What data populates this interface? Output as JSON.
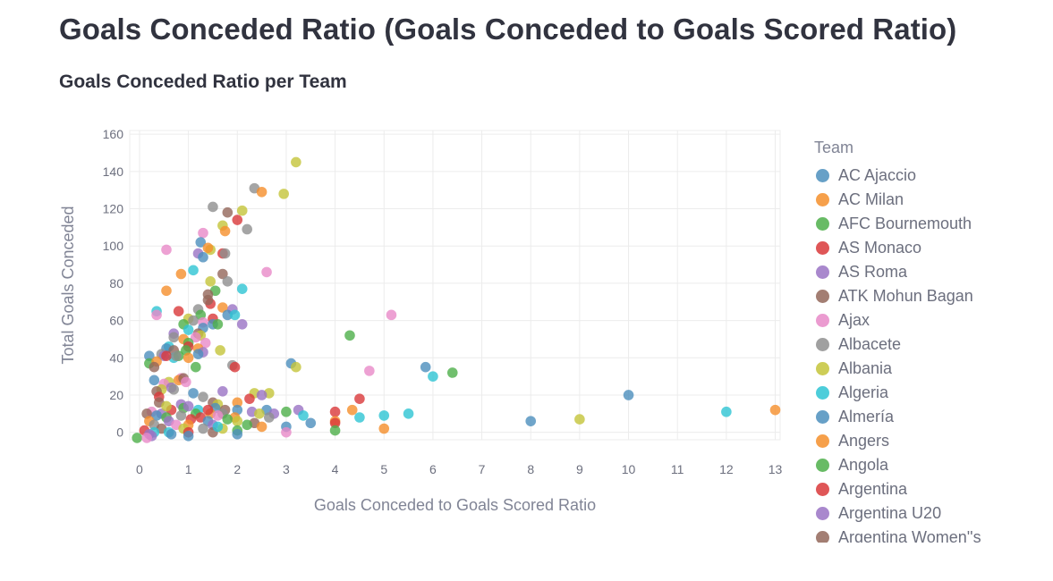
{
  "page": {
    "title": "Goals Conceded Ratio (Goals Conceded to Goals Scored Ratio)",
    "chart_heading": "Goals Conceded Ratio per Team"
  },
  "legend": {
    "title": "Team",
    "items": [
      {
        "label": "AC Ajaccio",
        "color": "#4c8fbd"
      },
      {
        "label": "AC Milan",
        "color": "#f58f2c"
      },
      {
        "label": "AFC Bournemouth",
        "color": "#4daf4a"
      },
      {
        "label": "AS Monaco",
        "color": "#d9383a"
      },
      {
        "label": "AS Roma",
        "color": "#9a73c4"
      },
      {
        "label": "ATK Mohun Bagan",
        "color": "#93675a"
      },
      {
        "label": "Ajax",
        "color": "#e889c8"
      },
      {
        "label": "Albacete",
        "color": "#8f8f8f"
      },
      {
        "label": "Albania",
        "color": "#c4c43a"
      },
      {
        "label": "Algeria",
        "color": "#2ec4d3"
      },
      {
        "label": "Almería",
        "color": "#4c8fbd"
      },
      {
        "label": "Angers",
        "color": "#f58f2c"
      },
      {
        "label": "Angola",
        "color": "#4daf4a"
      },
      {
        "label": "Argentina",
        "color": "#d9383a"
      },
      {
        "label": "Argentina U20",
        "color": "#9a73c4"
      },
      {
        "label": "Argentina Women''s",
        "color": "#93675a"
      }
    ]
  },
  "chart_data": {
    "type": "scatter",
    "xlabel": "Goals Conceded to Goals Scored Ratio",
    "ylabel": "Total Goals Conceded",
    "xlim": [
      -0.2,
      13.1
    ],
    "ylim": [
      -4,
      162
    ],
    "x_ticks": [
      0,
      1,
      2,
      3,
      4,
      5,
      6,
      7,
      8,
      9,
      10,
      11,
      12,
      13
    ],
    "y_ticks": [
      0,
      20,
      40,
      60,
      80,
      100,
      120,
      140,
      160
    ],
    "grid": true,
    "legend_position": "right",
    "palette": [
      "#4c8fbd",
      "#f58f2c",
      "#4daf4a",
      "#d9383a",
      "#9a73c4",
      "#93675a",
      "#e889c8",
      "#8f8f8f",
      "#c4c43a",
      "#2ec4d3"
    ],
    "points": [
      {
        "x": 3.2,
        "y": 145,
        "c": 8
      },
      {
        "x": 2.35,
        "y": 131,
        "c": 7
      },
      {
        "x": 2.5,
        "y": 129,
        "c": 1
      },
      {
        "x": 2.95,
        "y": 128,
        "c": 8
      },
      {
        "x": 1.5,
        "y": 121,
        "c": 7
      },
      {
        "x": 2.1,
        "y": 119,
        "c": 8
      },
      {
        "x": 1.8,
        "y": 118,
        "c": 5
      },
      {
        "x": 2.0,
        "y": 114,
        "c": 3
      },
      {
        "x": 1.7,
        "y": 111,
        "c": 8
      },
      {
        "x": 1.75,
        "y": 108,
        "c": 1
      },
      {
        "x": 2.2,
        "y": 109,
        "c": 7
      },
      {
        "x": 1.3,
        "y": 107,
        "c": 6
      },
      {
        "x": 1.25,
        "y": 102,
        "c": 0
      },
      {
        "x": 1.45,
        "y": 98,
        "c": 8
      },
      {
        "x": 0.55,
        "y": 98,
        "c": 6
      },
      {
        "x": 1.4,
        "y": 99,
        "c": 1
      },
      {
        "x": 1.2,
        "y": 96,
        "c": 4
      },
      {
        "x": 1.7,
        "y": 96,
        "c": 3
      },
      {
        "x": 1.3,
        "y": 94,
        "c": 0
      },
      {
        "x": 1.75,
        "y": 96,
        "c": 7
      },
      {
        "x": 1.1,
        "y": 87,
        "c": 9
      },
      {
        "x": 0.85,
        "y": 85,
        "c": 1
      },
      {
        "x": 1.7,
        "y": 85,
        "c": 5
      },
      {
        "x": 2.6,
        "y": 86,
        "c": 6
      },
      {
        "x": 1.45,
        "y": 81,
        "c": 8
      },
      {
        "x": 1.8,
        "y": 81,
        "c": 7
      },
      {
        "x": 0.55,
        "y": 76,
        "c": 1
      },
      {
        "x": 1.55,
        "y": 76,
        "c": 2
      },
      {
        "x": 2.1,
        "y": 77,
        "c": 9
      },
      {
        "x": 1.4,
        "y": 74,
        "c": 5
      },
      {
        "x": 1.45,
        "y": 69,
        "c": 3
      },
      {
        "x": 1.4,
        "y": 71,
        "c": 5
      },
      {
        "x": 1.7,
        "y": 67,
        "c": 1
      },
      {
        "x": 1.9,
        "y": 66,
        "c": 4
      },
      {
        "x": 1.2,
        "y": 66,
        "c": 7
      },
      {
        "x": 0.35,
        "y": 65,
        "c": 9
      },
      {
        "x": 0.8,
        "y": 65,
        "c": 3
      },
      {
        "x": 1.25,
        "y": 63,
        "c": 2
      },
      {
        "x": 1.8,
        "y": 63,
        "c": 0
      },
      {
        "x": 1.95,
        "y": 63,
        "c": 9
      },
      {
        "x": 0.35,
        "y": 63,
        "c": 6
      },
      {
        "x": 5.15,
        "y": 63,
        "c": 6
      },
      {
        "x": 1.5,
        "y": 61,
        "c": 3
      },
      {
        "x": 1.0,
        "y": 61,
        "c": 8
      },
      {
        "x": 1.1,
        "y": 60,
        "c": 7
      },
      {
        "x": 1.3,
        "y": 59,
        "c": 6
      },
      {
        "x": 1.5,
        "y": 58,
        "c": 0
      },
      {
        "x": 0.9,
        "y": 58,
        "c": 2
      },
      {
        "x": 2.1,
        "y": 58,
        "c": 4
      },
      {
        "x": 1.6,
        "y": 58,
        "c": 2
      },
      {
        "x": 1.3,
        "y": 56,
        "c": 0
      },
      {
        "x": 1.0,
        "y": 55,
        "c": 9
      },
      {
        "x": 1.2,
        "y": 53,
        "c": 5
      },
      {
        "x": 0.7,
        "y": 53,
        "c": 4
      },
      {
        "x": 1.25,
        "y": 52,
        "c": 8
      },
      {
        "x": 4.3,
        "y": 52,
        "c": 2
      },
      {
        "x": 0.7,
        "y": 51,
        "c": 7
      },
      {
        "x": 1.15,
        "y": 51,
        "c": 6
      },
      {
        "x": 0.9,
        "y": 50,
        "c": 1
      },
      {
        "x": 1.35,
        "y": 48,
        "c": 6
      },
      {
        "x": 1.0,
        "y": 48,
        "c": 2
      },
      {
        "x": 0.6,
        "y": 46,
        "c": 9
      },
      {
        "x": 0.55,
        "y": 45,
        "c": 0
      },
      {
        "x": 1.0,
        "y": 46,
        "c": 3
      },
      {
        "x": 1.2,
        "y": 45,
        "c": 1
      },
      {
        "x": 0.7,
        "y": 44,
        "c": 5
      },
      {
        "x": 0.95,
        "y": 44,
        "c": 2
      },
      {
        "x": 1.65,
        "y": 44,
        "c": 8
      },
      {
        "x": 0.45,
        "y": 42,
        "c": 7
      },
      {
        "x": 1.3,
        "y": 43,
        "c": 4
      },
      {
        "x": 1.2,
        "y": 42,
        "c": 0
      },
      {
        "x": 0.2,
        "y": 41,
        "c": 0
      },
      {
        "x": 0.5,
        "y": 41,
        "c": 4
      },
      {
        "x": 0.7,
        "y": 40,
        "c": 9
      },
      {
        "x": 0.8,
        "y": 41,
        "c": 2
      },
      {
        "x": 1.0,
        "y": 40,
        "c": 1
      },
      {
        "x": 0.55,
        "y": 41,
        "c": 3
      },
      {
        "x": 0.75,
        "y": 41,
        "c": 7
      },
      {
        "x": 0.2,
        "y": 37,
        "c": 2
      },
      {
        "x": 0.35,
        "y": 38,
        "c": 1
      },
      {
        "x": 3.1,
        "y": 37,
        "c": 0
      },
      {
        "x": 1.9,
        "y": 36,
        "c": 7
      },
      {
        "x": 1.95,
        "y": 35,
        "c": 3
      },
      {
        "x": 0.3,
        "y": 35,
        "c": 5
      },
      {
        "x": 1.15,
        "y": 35,
        "c": 2
      },
      {
        "x": 3.2,
        "y": 35,
        "c": 8
      },
      {
        "x": 5.85,
        "y": 35,
        "c": 0
      },
      {
        "x": 4.7,
        "y": 33,
        "c": 6
      },
      {
        "x": 6.4,
        "y": 32,
        "c": 2
      },
      {
        "x": 6.0,
        "y": 30,
        "c": 9
      },
      {
        "x": 0.85,
        "y": 29,
        "c": 6
      },
      {
        "x": 0.3,
        "y": 28,
        "c": 0
      },
      {
        "x": 0.8,
        "y": 28,
        "c": 1
      },
      {
        "x": 0.6,
        "y": 27,
        "c": 8
      },
      {
        "x": 0.9,
        "y": 29,
        "c": 5
      },
      {
        "x": 0.95,
        "y": 27,
        "c": 6
      },
      {
        "x": 0.5,
        "y": 26,
        "c": 6
      },
      {
        "x": 0.65,
        "y": 24,
        "c": 4
      },
      {
        "x": 0.45,
        "y": 23,
        "c": 8
      },
      {
        "x": 0.35,
        "y": 22,
        "c": 5
      },
      {
        "x": 0.7,
        "y": 23,
        "c": 7
      },
      {
        "x": 1.1,
        "y": 21,
        "c": 0
      },
      {
        "x": 1.7,
        "y": 22,
        "c": 4
      },
      {
        "x": 2.35,
        "y": 21,
        "c": 8
      },
      {
        "x": 2.65,
        "y": 21,
        "c": 8
      },
      {
        "x": 10.0,
        "y": 20,
        "c": 0
      },
      {
        "x": 2.5,
        "y": 20,
        "c": 4
      },
      {
        "x": 0.4,
        "y": 19,
        "c": 3
      },
      {
        "x": 1.3,
        "y": 19,
        "c": 7
      },
      {
        "x": 2.25,
        "y": 18,
        "c": 3
      },
      {
        "x": 4.5,
        "y": 18,
        "c": 3
      },
      {
        "x": 0.4,
        "y": 16,
        "c": 5
      },
      {
        "x": 0.85,
        "y": 15,
        "c": 4
      },
      {
        "x": 1.5,
        "y": 16,
        "c": 5
      },
      {
        "x": 1.6,
        "y": 15,
        "c": 8
      },
      {
        "x": 2.0,
        "y": 16,
        "c": 1
      },
      {
        "x": 0.9,
        "y": 13,
        "c": 2
      },
      {
        "x": 1.0,
        "y": 14,
        "c": 4
      },
      {
        "x": 1.55,
        "y": 13,
        "c": 0
      },
      {
        "x": 2.0,
        "y": 12,
        "c": 0
      },
      {
        "x": 0.25,
        "y": 11,
        "c": 6
      },
      {
        "x": 0.65,
        "y": 12,
        "c": 3
      },
      {
        "x": 1.2,
        "y": 12,
        "c": 9
      },
      {
        "x": 1.75,
        "y": 12,
        "c": 5
      },
      {
        "x": 2.3,
        "y": 11,
        "c": 4
      },
      {
        "x": 2.6,
        "y": 12,
        "c": 0
      },
      {
        "x": 3.25,
        "y": 12,
        "c": 4
      },
      {
        "x": 4.35,
        "y": 12,
        "c": 1
      },
      {
        "x": 13.0,
        "y": 12,
        "c": 1
      },
      {
        "x": 12.0,
        "y": 11,
        "c": 9
      },
      {
        "x": 0.15,
        "y": 10,
        "c": 5
      },
      {
        "x": 0.45,
        "y": 10,
        "c": 4
      },
      {
        "x": 0.85,
        "y": 9,
        "c": 7
      },
      {
        "x": 1.15,
        "y": 10,
        "c": 2
      },
      {
        "x": 1.45,
        "y": 10,
        "c": 1
      },
      {
        "x": 1.7,
        "y": 10,
        "c": 7
      },
      {
        "x": 2.45,
        "y": 10,
        "c": 8
      },
      {
        "x": 2.75,
        "y": 10,
        "c": 4
      },
      {
        "x": 3.0,
        "y": 11,
        "c": 2
      },
      {
        "x": 4.0,
        "y": 11,
        "c": 3
      },
      {
        "x": 5.5,
        "y": 10,
        "c": 9
      },
      {
        "x": 3.35,
        "y": 9,
        "c": 9
      },
      {
        "x": 5.0,
        "y": 9,
        "c": 9
      },
      {
        "x": 0.35,
        "y": 9,
        "c": 0
      },
      {
        "x": 0.55,
        "y": 8,
        "c": 2
      },
      {
        "x": 1.25,
        "y": 8,
        "c": 3
      },
      {
        "x": 1.6,
        "y": 9,
        "c": 6
      },
      {
        "x": 1.95,
        "y": 8,
        "c": 1
      },
      {
        "x": 2.65,
        "y": 8,
        "c": 7
      },
      {
        "x": 4.5,
        "y": 8,
        "c": 9
      },
      {
        "x": 9.0,
        "y": 7,
        "c": 8
      },
      {
        "x": 0.2,
        "y": 6,
        "c": 1
      },
      {
        "x": 0.6,
        "y": 6,
        "c": 4
      },
      {
        "x": 1.05,
        "y": 7,
        "c": 3
      },
      {
        "x": 1.4,
        "y": 6,
        "c": 0
      },
      {
        "x": 1.8,
        "y": 7,
        "c": 2
      },
      {
        "x": 2.0,
        "y": 6,
        "c": 8
      },
      {
        "x": 2.35,
        "y": 5,
        "c": 5
      },
      {
        "x": 4.0,
        "y": 6,
        "c": 1
      },
      {
        "x": 4.0,
        "y": 5,
        "c": 3
      },
      {
        "x": 8.0,
        "y": 6,
        "c": 0
      },
      {
        "x": 3.5,
        "y": 5,
        "c": 0
      },
      {
        "x": 0.3,
        "y": 4,
        "c": 7
      },
      {
        "x": 0.75,
        "y": 4,
        "c": 6
      },
      {
        "x": 1.0,
        "y": 4,
        "c": 1
      },
      {
        "x": 1.5,
        "y": 4,
        "c": 4
      },
      {
        "x": 2.5,
        "y": 3,
        "c": 1
      },
      {
        "x": 3.0,
        "y": 3,
        "c": 0
      },
      {
        "x": 5.0,
        "y": 2,
        "c": 1
      },
      {
        "x": 0.1,
        "y": 1,
        "c": 3
      },
      {
        "x": 0.45,
        "y": 2,
        "c": 5
      },
      {
        "x": 0.9,
        "y": 2,
        "c": 8
      },
      {
        "x": 1.3,
        "y": 2,
        "c": 7
      },
      {
        "x": 1.7,
        "y": 2,
        "c": 8
      },
      {
        "x": 2.0,
        "y": 1,
        "c": 2
      },
      {
        "x": 4.0,
        "y": 1,
        "c": 2
      },
      {
        "x": 0.3,
        "y": 0,
        "c": 9
      },
      {
        "x": 0.6,
        "y": 0,
        "c": 9
      },
      {
        "x": 1.0,
        "y": 0,
        "c": 3
      },
      {
        "x": 1.5,
        "y": 0,
        "c": 5
      },
      {
        "x": 3.0,
        "y": 0,
        "c": 6
      },
      {
        "x": 0.2,
        "y": -1,
        "c": 4
      },
      {
        "x": 0.65,
        "y": -1,
        "c": 0
      },
      {
        "x": 2.0,
        "y": -1,
        "c": 0
      },
      {
        "x": 1.0,
        "y": -2,
        "c": 0
      },
      {
        "x": 0.25,
        "y": -2,
        "c": 4
      },
      {
        "x": -0.05,
        "y": -3,
        "c": 2
      },
      {
        "x": 0.15,
        "y": -3,
        "c": 6
      },
      {
        "x": 1.6,
        "y": 3,
        "c": 9
      },
      {
        "x": 2.2,
        "y": 4,
        "c": 2
      },
      {
        "x": 1.4,
        "y": 12,
        "c": 3
      },
      {
        "x": 0.55,
        "y": 14,
        "c": 8
      }
    ]
  }
}
